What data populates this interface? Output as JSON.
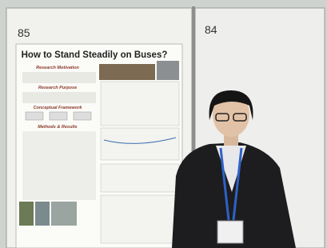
{
  "boards": [
    {
      "number": "85"
    },
    {
      "number": "84"
    }
  ],
  "poster": {
    "title": "How to Stand Steadily on Buses?",
    "sections": [
      "Research Motivation",
      "Research Purpose",
      "Conceptual Framework",
      "Methods & Results"
    ]
  }
}
